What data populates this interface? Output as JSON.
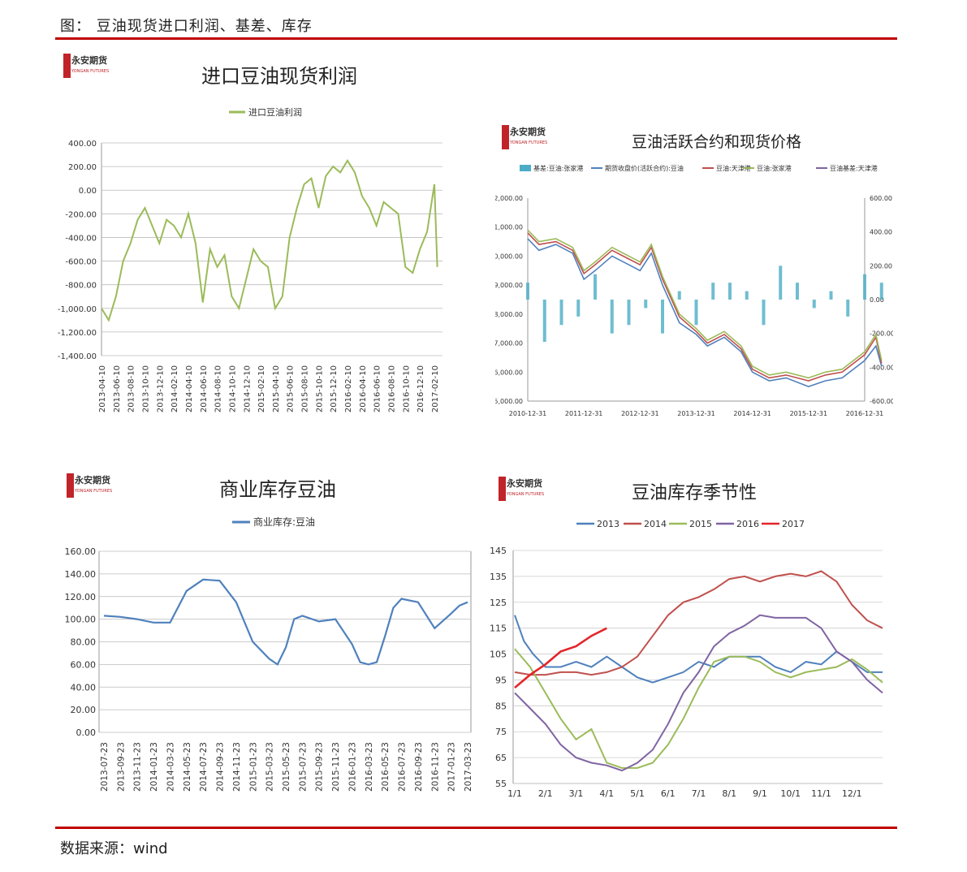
{
  "header": {
    "title": "图：    豆油现货进口利润、基差、库存"
  },
  "footer": {
    "source": "数据来源：wind"
  },
  "logo": {
    "text": "永安期货",
    "sub": "YONGAN FUTURES"
  },
  "colors": {
    "rule": "#c00000",
    "green": "#9bbb59",
    "blue": "#4f81bd",
    "red": "#c0504d",
    "purple": "#8064a2",
    "teal": "#4bacc6",
    "red2017": "#e3262b"
  },
  "chart_data": [
    {
      "type": "line",
      "title": "进口豆油现货利润",
      "legend": [
        "进口豆油利润"
      ],
      "yticks": [
        "400.00",
        "200.00",
        "0.00",
        "-200.00",
        "-400.00",
        "-600.00",
        "-800.00",
        "-1,000.00",
        "-1,200.00",
        "-1,400.00"
      ],
      "ylim": [
        -1400,
        400
      ],
      "xticks": [
        "2013-04-10",
        "2013-06-10",
        "2013-08-10",
        "2013-10-10",
        "2013-12-10",
        "2014-02-10",
        "2014-04-10",
        "2014-06-10",
        "2014-08-10",
        "2014-10-10",
        "2014-12-10",
        "2015-02-10",
        "2015-04-10",
        "2015-06-10",
        "2015-08-10",
        "2015-10-10",
        "2015-12-10",
        "2016-02-10",
        "2016-04-10",
        "2016-06-10",
        "2016-08-10",
        "2016-10-10",
        "2016-12-10",
        "2017-02-10"
      ],
      "series": [
        {
          "name": "进口豆油利润",
          "x": [
            0,
            0.5,
            1,
            1.5,
            2,
            2.5,
            3,
            3.5,
            4,
            4.5,
            5,
            5.5,
            6,
            6.5,
            7,
            7.5,
            8,
            8.5,
            9,
            9.5,
            10,
            10.5,
            11,
            11.5,
            12,
            12.5,
            13,
            13.5,
            14,
            14.5,
            15,
            15.5,
            16,
            16.5,
            17,
            17.5,
            18,
            18.5,
            19,
            19.5,
            20,
            20.5,
            21,
            21.5,
            22,
            22.5,
            23,
            23.2
          ],
          "y": [
            -1000,
            -1100,
            -900,
            -600,
            -450,
            -250,
            -150,
            -300,
            -450,
            -250,
            -300,
            -400,
            -200,
            -450,
            -950,
            -500,
            -650,
            -550,
            -900,
            -1000,
            -750,
            -500,
            -600,
            -650,
            -1000,
            -900,
            -400,
            -150,
            50,
            100,
            -150,
            120,
            200,
            150,
            250,
            150,
            -50,
            -150,
            -300,
            -100,
            -150,
            -200,
            -650,
            -700,
            -500,
            -350,
            50,
            -650
          ]
        }
      ]
    },
    {
      "type": "line",
      "title": "豆油活跃合约和现货价格",
      "legend": [
        "基差:豆油:张家港",
        "期货收盘价(活跃合约):豆油",
        "豆油:天津港",
        "豆油:张家港",
        "豆油基差:天津港"
      ],
      "yticks_left": [
        "12,000.00",
        "11,000.00",
        "10,000.00",
        "9,000.00",
        "8,000.00",
        "7,000.00",
        "6,000.00",
        "5,000.00"
      ],
      "yticks_right": [
        "600.00",
        "400.00",
        "200.00",
        "0.00",
        "-200.00",
        "-400.00",
        "-600.00"
      ],
      "ylim_left": [
        5000,
        12000
      ],
      "ylim_right": [
        -600,
        600
      ],
      "xticks": [
        "2010-12-31",
        "2011-12-31",
        "2012-12-31",
        "2013-12-31",
        "2014-12-31",
        "2015-12-31",
        "2016-12-31"
      ],
      "series": [
        {
          "name": "期货收盘价(活跃合约):豆油",
          "x": [
            0,
            0.2,
            0.5,
            0.8,
            1,
            1.2,
            1.5,
            1.8,
            2,
            2.2,
            2.4,
            2.7,
            3,
            3.2,
            3.5,
            3.8,
            4,
            4.3,
            4.6,
            5,
            5.3,
            5.6,
            6,
            6.2,
            6.3
          ],
          "y": [
            10600,
            10200,
            10400,
            10100,
            9200,
            9500,
            10000,
            9700,
            9500,
            10100,
            9000,
            7700,
            7300,
            6900,
            7200,
            6700,
            6000,
            5700,
            5800,
            5500,
            5700,
            5800,
            6400,
            6900,
            6200
          ]
        },
        {
          "name": "豆油:天津港",
          "x": [
            0,
            0.2,
            0.5,
            0.8,
            1,
            1.2,
            1.5,
            1.8,
            2,
            2.2,
            2.4,
            2.7,
            3,
            3.2,
            3.5,
            3.8,
            4,
            4.3,
            4.6,
            5,
            5.3,
            5.6,
            6,
            6.2,
            6.3
          ],
          "y": [
            10800,
            10400,
            10500,
            10200,
            9400,
            9700,
            10200,
            9900,
            9700,
            10300,
            9200,
            7900,
            7400,
            7000,
            7300,
            6800,
            6100,
            5800,
            5900,
            5700,
            5900,
            6000,
            6600,
            7200,
            6300
          ]
        },
        {
          "name": "豆油:张家港",
          "x": [
            0,
            0.2,
            0.5,
            0.8,
            1,
            1.2,
            1.5,
            1.8,
            2,
            2.2,
            2.4,
            2.7,
            3,
            3.2,
            3.5,
            3.8,
            4,
            4.3,
            4.6,
            5,
            5.3,
            5.6,
            6,
            6.2,
            6.3
          ],
          "y": [
            10900,
            10500,
            10600,
            10300,
            9500,
            9800,
            10300,
            10000,
            9800,
            10400,
            9300,
            8000,
            7500,
            7100,
            7400,
            6900,
            6200,
            5900,
            6000,
            5800,
            6000,
            6100,
            6700,
            7300,
            6400
          ]
        }
      ],
      "bars": {
        "name": "基差:豆油:张家港",
        "x": [
          0,
          0.3,
          0.6,
          0.9,
          1.2,
          1.5,
          1.8,
          2.1,
          2.4,
          2.7,
          3,
          3.3,
          3.6,
          3.9,
          4.2,
          4.5,
          4.8,
          5.1,
          5.4,
          5.7,
          6,
          6.3
        ],
        "values": [
          100,
          -250,
          -150,
          -100,
          150,
          -200,
          -150,
          -50,
          -200,
          50,
          -150,
          100,
          100,
          50,
          -150,
          200,
          100,
          -50,
          50,
          -100,
          150,
          100
        ]
      }
    },
    {
      "type": "line",
      "title": "商业库存豆油",
      "legend": [
        "商业库存:豆油"
      ],
      "yticks": [
        "160.00",
        "140.00",
        "120.00",
        "100.00",
        "80.00",
        "60.00",
        "40.00",
        "20.00",
        "0.00"
      ],
      "ylim": [
        0,
        160
      ],
      "xticks": [
        "2013-07-23",
        "2013-09-23",
        "2013-11-23",
        "2014-01-23",
        "2014-03-23",
        "2014-05-23",
        "2014-07-23",
        "2014-09-23",
        "2014-11-23",
        "2015-01-23",
        "2015-03-23",
        "2015-05-23",
        "2015-07-23",
        "2015-09-23",
        "2015-11-23",
        "2016-01-23",
        "2016-03-23",
        "2016-05-23",
        "2016-07-23",
        "2016-09-23",
        "2016-11-23",
        "2017-01-23",
        "2017-03-23"
      ],
      "series": [
        {
          "name": "商业库存:豆油",
          "x": [
            0,
            1,
            2,
            3,
            4,
            5,
            6,
            7,
            8,
            9,
            10,
            10.5,
            11,
            11.5,
            12,
            13,
            14,
            15,
            15.5,
            16,
            16.5,
            17,
            17.5,
            18,
            19,
            20,
            21,
            21.5,
            22
          ],
          "y": [
            103,
            102,
            100,
            97,
            97,
            125,
            135,
            134,
            115,
            80,
            65,
            60,
            75,
            100,
            103,
            98,
            100,
            78,
            62,
            60,
            62,
            85,
            110,
            118,
            115,
            92,
            105,
            112,
            115
          ]
        }
      ]
    },
    {
      "type": "line",
      "title": "豆油库存季节性",
      "legend": [
        "2013",
        "2014",
        "2015",
        "2016",
        "2017"
      ],
      "yticks": [
        "145",
        "135",
        "125",
        "115",
        "105",
        "95",
        "85",
        "75",
        "65",
        "55"
      ],
      "ylim": [
        55,
        145
      ],
      "xticks": [
        "1/1",
        "2/1",
        "3/1",
        "4/1",
        "5/1",
        "6/1",
        "7/1",
        "8/1",
        "9/1",
        "10/1",
        "11/1",
        "12/1"
      ],
      "series": [
        {
          "name": "2013",
          "x": [
            0,
            0.3,
            0.6,
            1,
            1.5,
            2,
            2.5,
            3,
            3.5,
            4,
            4.5,
            5,
            5.5,
            6,
            6.5,
            7,
            7.5,
            8,
            8.5,
            9,
            9.5,
            10,
            10.5,
            11,
            11.5,
            12
          ],
          "y": [
            120,
            110,
            105,
            100,
            100,
            102,
            100,
            104,
            100,
            96,
            94,
            96,
            98,
            102,
            100,
            104,
            104,
            104,
            100,
            98,
            102,
            101,
            106,
            102,
            98,
            98
          ]
        },
        {
          "name": "2014",
          "x": [
            0,
            0.5,
            1,
            1.5,
            2,
            2.5,
            3,
            3.5,
            4,
            4.5,
            5,
            5.5,
            6,
            6.5,
            7,
            7.5,
            8,
            8.5,
            9,
            9.5,
            10,
            10.5,
            11,
            11.5,
            12
          ],
          "y": [
            98,
            97,
            97,
            98,
            98,
            97,
            98,
            100,
            104,
            112,
            120,
            125,
            127,
            130,
            134,
            135,
            133,
            135,
            136,
            135,
            137,
            133,
            124,
            118,
            115
          ]
        },
        {
          "name": "2015",
          "x": [
            0,
            0.5,
            1,
            1.5,
            2,
            2.5,
            3,
            3.5,
            4,
            4.5,
            5,
            5.5,
            6,
            6.5,
            7,
            7.5,
            8,
            8.5,
            9,
            9.5,
            10,
            10.5,
            11,
            11.5,
            12
          ],
          "y": [
            107,
            100,
            90,
            80,
            72,
            76,
            63,
            61,
            61,
            63,
            70,
            80,
            92,
            102,
            104,
            104,
            102,
            98,
            96,
            98,
            99,
            100,
            103,
            99,
            94
          ]
        },
        {
          "name": "2016",
          "x": [
            0,
            0.5,
            1,
            1.5,
            2,
            2.5,
            3,
            3.5,
            4,
            4.5,
            5,
            5.5,
            6,
            6.5,
            7,
            7.5,
            8,
            8.5,
            9,
            9.5,
            10,
            10.5,
            11,
            11.5,
            12
          ],
          "y": [
            90,
            84,
            78,
            70,
            65,
            63,
            62,
            60,
            63,
            68,
            78,
            90,
            98,
            108,
            113,
            116,
            120,
            119,
            119,
            119,
            115,
            106,
            102,
            95,
            90
          ]
        },
        {
          "name": "2017",
          "x": [
            0,
            0.5,
            1,
            1.5,
            2,
            2.5,
            3
          ],
          "y": [
            92,
            97,
            101,
            106,
            108,
            112,
            115
          ]
        }
      ]
    }
  ]
}
